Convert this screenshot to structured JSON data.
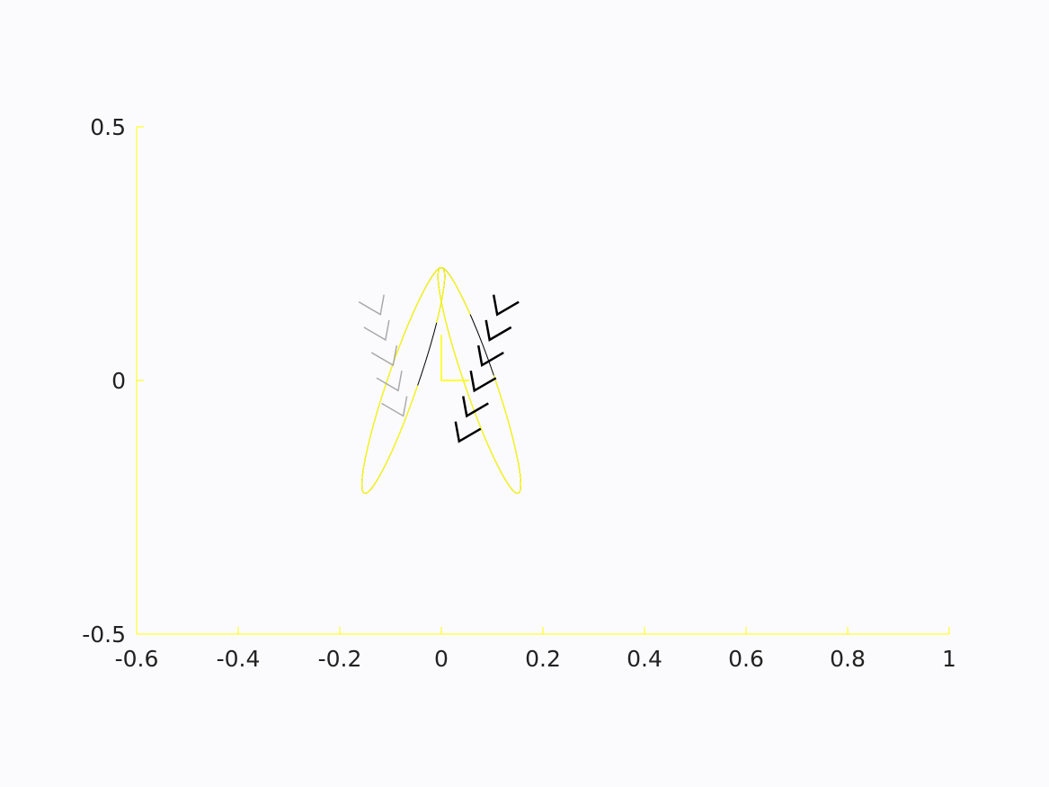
{
  "chart_data": {
    "type": "line",
    "title": "",
    "xlabel": "",
    "ylabel": "",
    "xlim": [
      -0.6,
      1
    ],
    "ylim": [
      -0.5,
      0.5
    ],
    "x_ticks": [
      -0.6,
      -0.4,
      -0.2,
      0,
      0.2,
      0.4,
      0.6,
      0.8,
      1
    ],
    "x_tick_labels": [
      "-0.6",
      "-0.4",
      "-0.2",
      "0",
      "0.2",
      "0.4",
      "0.6",
      "0.8",
      "1"
    ],
    "y_ticks": [
      -0.5,
      0,
      0.5
    ],
    "y_tick_labels": [
      "-0.5",
      "0",
      "0.5"
    ],
    "grid": false,
    "colors": {
      "axis": "#ffff00",
      "label": "#222222",
      "outline": "#000000",
      "chevron_light": "#aaaaaa",
      "chevron_dark": "#000000",
      "accent": "#ffff00"
    },
    "series": [
      {
        "kind": "ellipse-outline",
        "center": [
          -0.075,
          0.0
        ],
        "semi_axes": [
          0.03,
          0.235
        ],
        "angle_deg": 19
      },
      {
        "kind": "ellipse-outline",
        "center": [
          0.075,
          0.0
        ],
        "semi_axes": [
          0.03,
          0.235
        ],
        "angle_deg": -19
      },
      {
        "kind": "axis-marker",
        "x": [
          0,
          0,
          0.055
        ],
        "y": [
          0.09,
          0,
          0
        ]
      },
      {
        "kind": "chevrons",
        "color": "light",
        "points": [
          [
            -0.12,
            0.13
          ],
          [
            -0.11,
            0.08
          ],
          [
            -0.095,
            0.03
          ],
          [
            -0.085,
            -0.02
          ],
          [
            -0.075,
            -0.07
          ]
        ]
      },
      {
        "kind": "chevrons",
        "color": "dark",
        "points": [
          [
            0.11,
            0.13
          ],
          [
            0.095,
            0.08
          ],
          [
            0.08,
            0.03
          ],
          [
            0.065,
            -0.02
          ],
          [
            0.05,
            -0.07
          ],
          [
            0.035,
            -0.12
          ]
        ]
      }
    ]
  }
}
